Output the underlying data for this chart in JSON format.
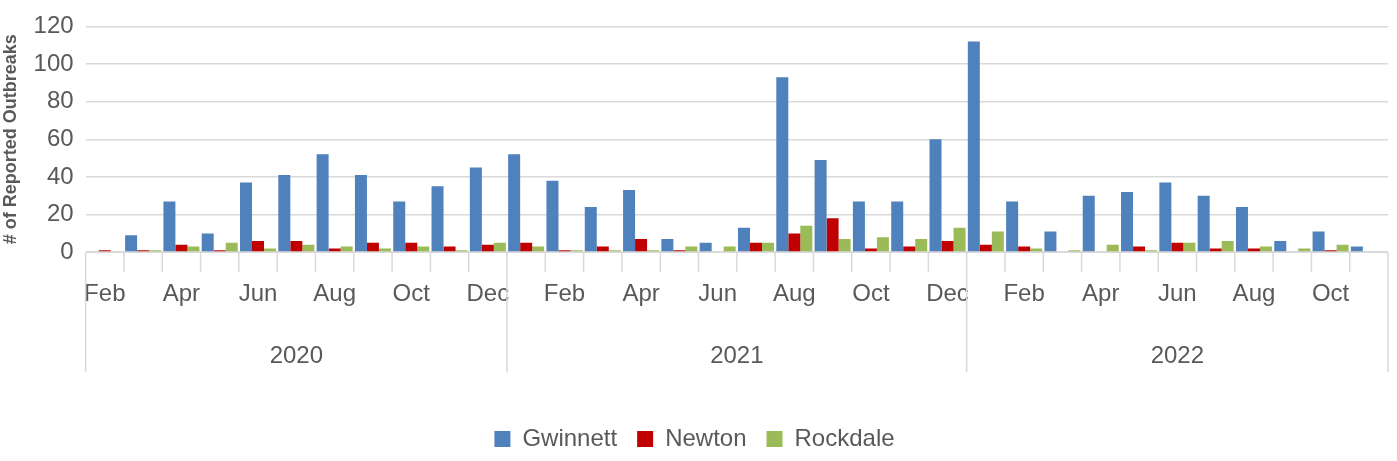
{
  "chart_data": {
    "type": "bar",
    "categories": [
      "Feb",
      null,
      "Apr",
      null,
      "Jun",
      null,
      "Aug",
      null,
      "Oct",
      null,
      "Dec",
      null,
      "Feb",
      null,
      "Apr",
      null,
      "Jun",
      null,
      "Aug",
      null,
      "Oct",
      null,
      "Dec",
      null,
      "Feb",
      null,
      "Apr",
      null,
      "Jun",
      null,
      "Aug",
      null,
      "Oct",
      null
    ],
    "annotations": [
      "2020",
      "2021",
      "2022"
    ],
    "series": [
      {
        "name": "Gwinnett",
        "color": "#4f81bd",
        "values": [
          0,
          9,
          27,
          10,
          37,
          41,
          52,
          41,
          27,
          35,
          45,
          52,
          38,
          24,
          33,
          7,
          5,
          13,
          93,
          49,
          27,
          27,
          60,
          112,
          27,
          11,
          30,
          32,
          37,
          30,
          24,
          6,
          11,
          3
        ]
      },
      {
        "name": "Newton",
        "color": "#c00000",
        "values": [
          1,
          1,
          4,
          1,
          6,
          6,
          2,
          5,
          5,
          3,
          4,
          5,
          1,
          3,
          7,
          1,
          0,
          5,
          10,
          18,
          2,
          3,
          6,
          4,
          3,
          0,
          0,
          3,
          5,
          2,
          2,
          0,
          1,
          0
        ]
      },
      {
        "name": "Rockdale",
        "color": "#9bbb59",
        "values": [
          0,
          1,
          3,
          5,
          2,
          4,
          3,
          2,
          3,
          1,
          5,
          3,
          1,
          1,
          1,
          3,
          3,
          5,
          14,
          7,
          8,
          7,
          13,
          11,
          2,
          1,
          4,
          1,
          5,
          6,
          3,
          2,
          4,
          0
        ]
      }
    ],
    "ylabel": "# of Reported Outbreaks",
    "ylim": [
      0,
      120
    ],
    "yticks": [
      0,
      20,
      40,
      60,
      80,
      100,
      120
    ],
    "grid": "y",
    "legend": "bottom"
  }
}
